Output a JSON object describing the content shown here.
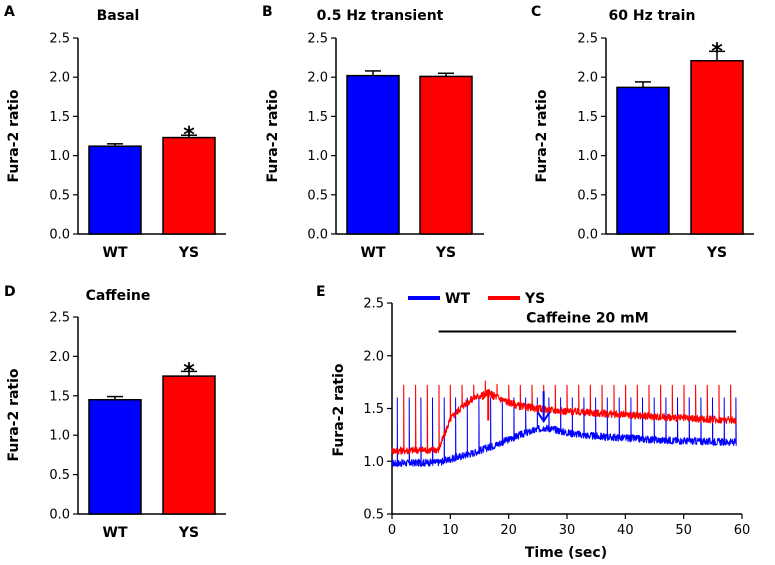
{
  "chart_data": [
    {
      "type": "bar",
      "panel": "A",
      "title": "Basal",
      "ylabel": "Fura-2 ratio",
      "ylim": [
        0,
        2.5
      ],
      "yticks": [
        "0.0",
        "0.5",
        "1.0",
        "1.5",
        "2.0",
        "2.5"
      ],
      "categories": [
        "WT",
        "YS"
      ],
      "values": [
        1.12,
        1.23
      ],
      "errors": [
        0.03,
        0.03
      ],
      "significance": [
        "",
        "*"
      ]
    },
    {
      "type": "bar",
      "panel": "B",
      "title": "0.5 Hz transient",
      "ylabel": "Fura-2 ratio",
      "ylim": [
        0,
        2.5
      ],
      "yticks": [
        "0.0",
        "0.5",
        "1.0",
        "1.5",
        "2.0",
        "2.5"
      ],
      "categories": [
        "WT",
        "YS"
      ],
      "values": [
        2.02,
        2.01
      ],
      "errors": [
        0.06,
        0.04
      ],
      "significance": [
        "",
        ""
      ]
    },
    {
      "type": "bar",
      "panel": "C",
      "title": "60 Hz train",
      "ylabel": "Fura-2 ratio",
      "ylim": [
        0,
        2.5
      ],
      "yticks": [
        "0.0",
        "0.5",
        "1.0",
        "1.5",
        "2.0",
        "2.5"
      ],
      "categories": [
        "WT",
        "YS"
      ],
      "values": [
        1.87,
        2.21
      ],
      "errors": [
        0.07,
        0.12
      ],
      "significance": [
        "",
        "*"
      ]
    },
    {
      "type": "bar",
      "panel": "D",
      "title": "Caffeine",
      "ylabel": "Fura-2 ratio",
      "ylim": [
        0,
        2.5
      ],
      "yticks": [
        "0.0",
        "0.5",
        "1.0",
        "1.5",
        "2.0",
        "2.5"
      ],
      "categories": [
        "WT",
        "YS"
      ],
      "values": [
        1.45,
        1.75
      ],
      "errors": [
        0.04,
        0.06
      ],
      "significance": [
        "",
        "*"
      ]
    },
    {
      "type": "line",
      "panel": "E",
      "title": "",
      "xlabel": "Time (sec)",
      "ylabel": "Fura-2 ratio",
      "xlim": [
        0,
        60
      ],
      "ylim": [
        0.5,
        2.5
      ],
      "xticks": [
        "0",
        "10",
        "20",
        "30",
        "40",
        "50",
        "60"
      ],
      "yticks": [
        "0.5",
        "1.0",
        "1.5",
        "2.0",
        "2.5"
      ],
      "annotation": {
        "text": "Caffeine 20 mM",
        "x_start": 8,
        "x_end": 59,
        "y": 2.23
      },
      "arrows": [
        {
          "series": "YS",
          "x": 16.5,
          "y_tip": 1.67,
          "direction": "down"
        },
        {
          "series": "WT",
          "x": 26,
          "y_tip": 1.38,
          "direction": "up"
        }
      ],
      "spike_interval_sec": 2,
      "series": [
        {
          "name": "WT",
          "x": [
            0,
            8,
            10,
            14,
            18,
            22,
            26,
            28,
            30,
            34,
            40,
            46,
            52,
            59
          ],
          "baseline": [
            0.98,
            0.99,
            1.02,
            1.08,
            1.16,
            1.25,
            1.32,
            1.3,
            1.27,
            1.24,
            1.22,
            1.2,
            1.19,
            1.18
          ],
          "spike_peak": 1.6
        },
        {
          "name": "YS",
          "x": [
            0,
            8,
            10,
            12,
            14,
            16.5,
            19,
            22,
            25,
            28,
            34,
            40,
            46,
            52,
            59
          ],
          "baseline": [
            1.1,
            1.11,
            1.4,
            1.52,
            1.6,
            1.65,
            1.58,
            1.52,
            1.5,
            1.48,
            1.46,
            1.44,
            1.42,
            1.4,
            1.39
          ],
          "spike_peak": 1.72
        }
      ]
    }
  ],
  "colors": {
    "WT": "#0000ff",
    "YS": "#ff0000",
    "axis": "#000000"
  }
}
